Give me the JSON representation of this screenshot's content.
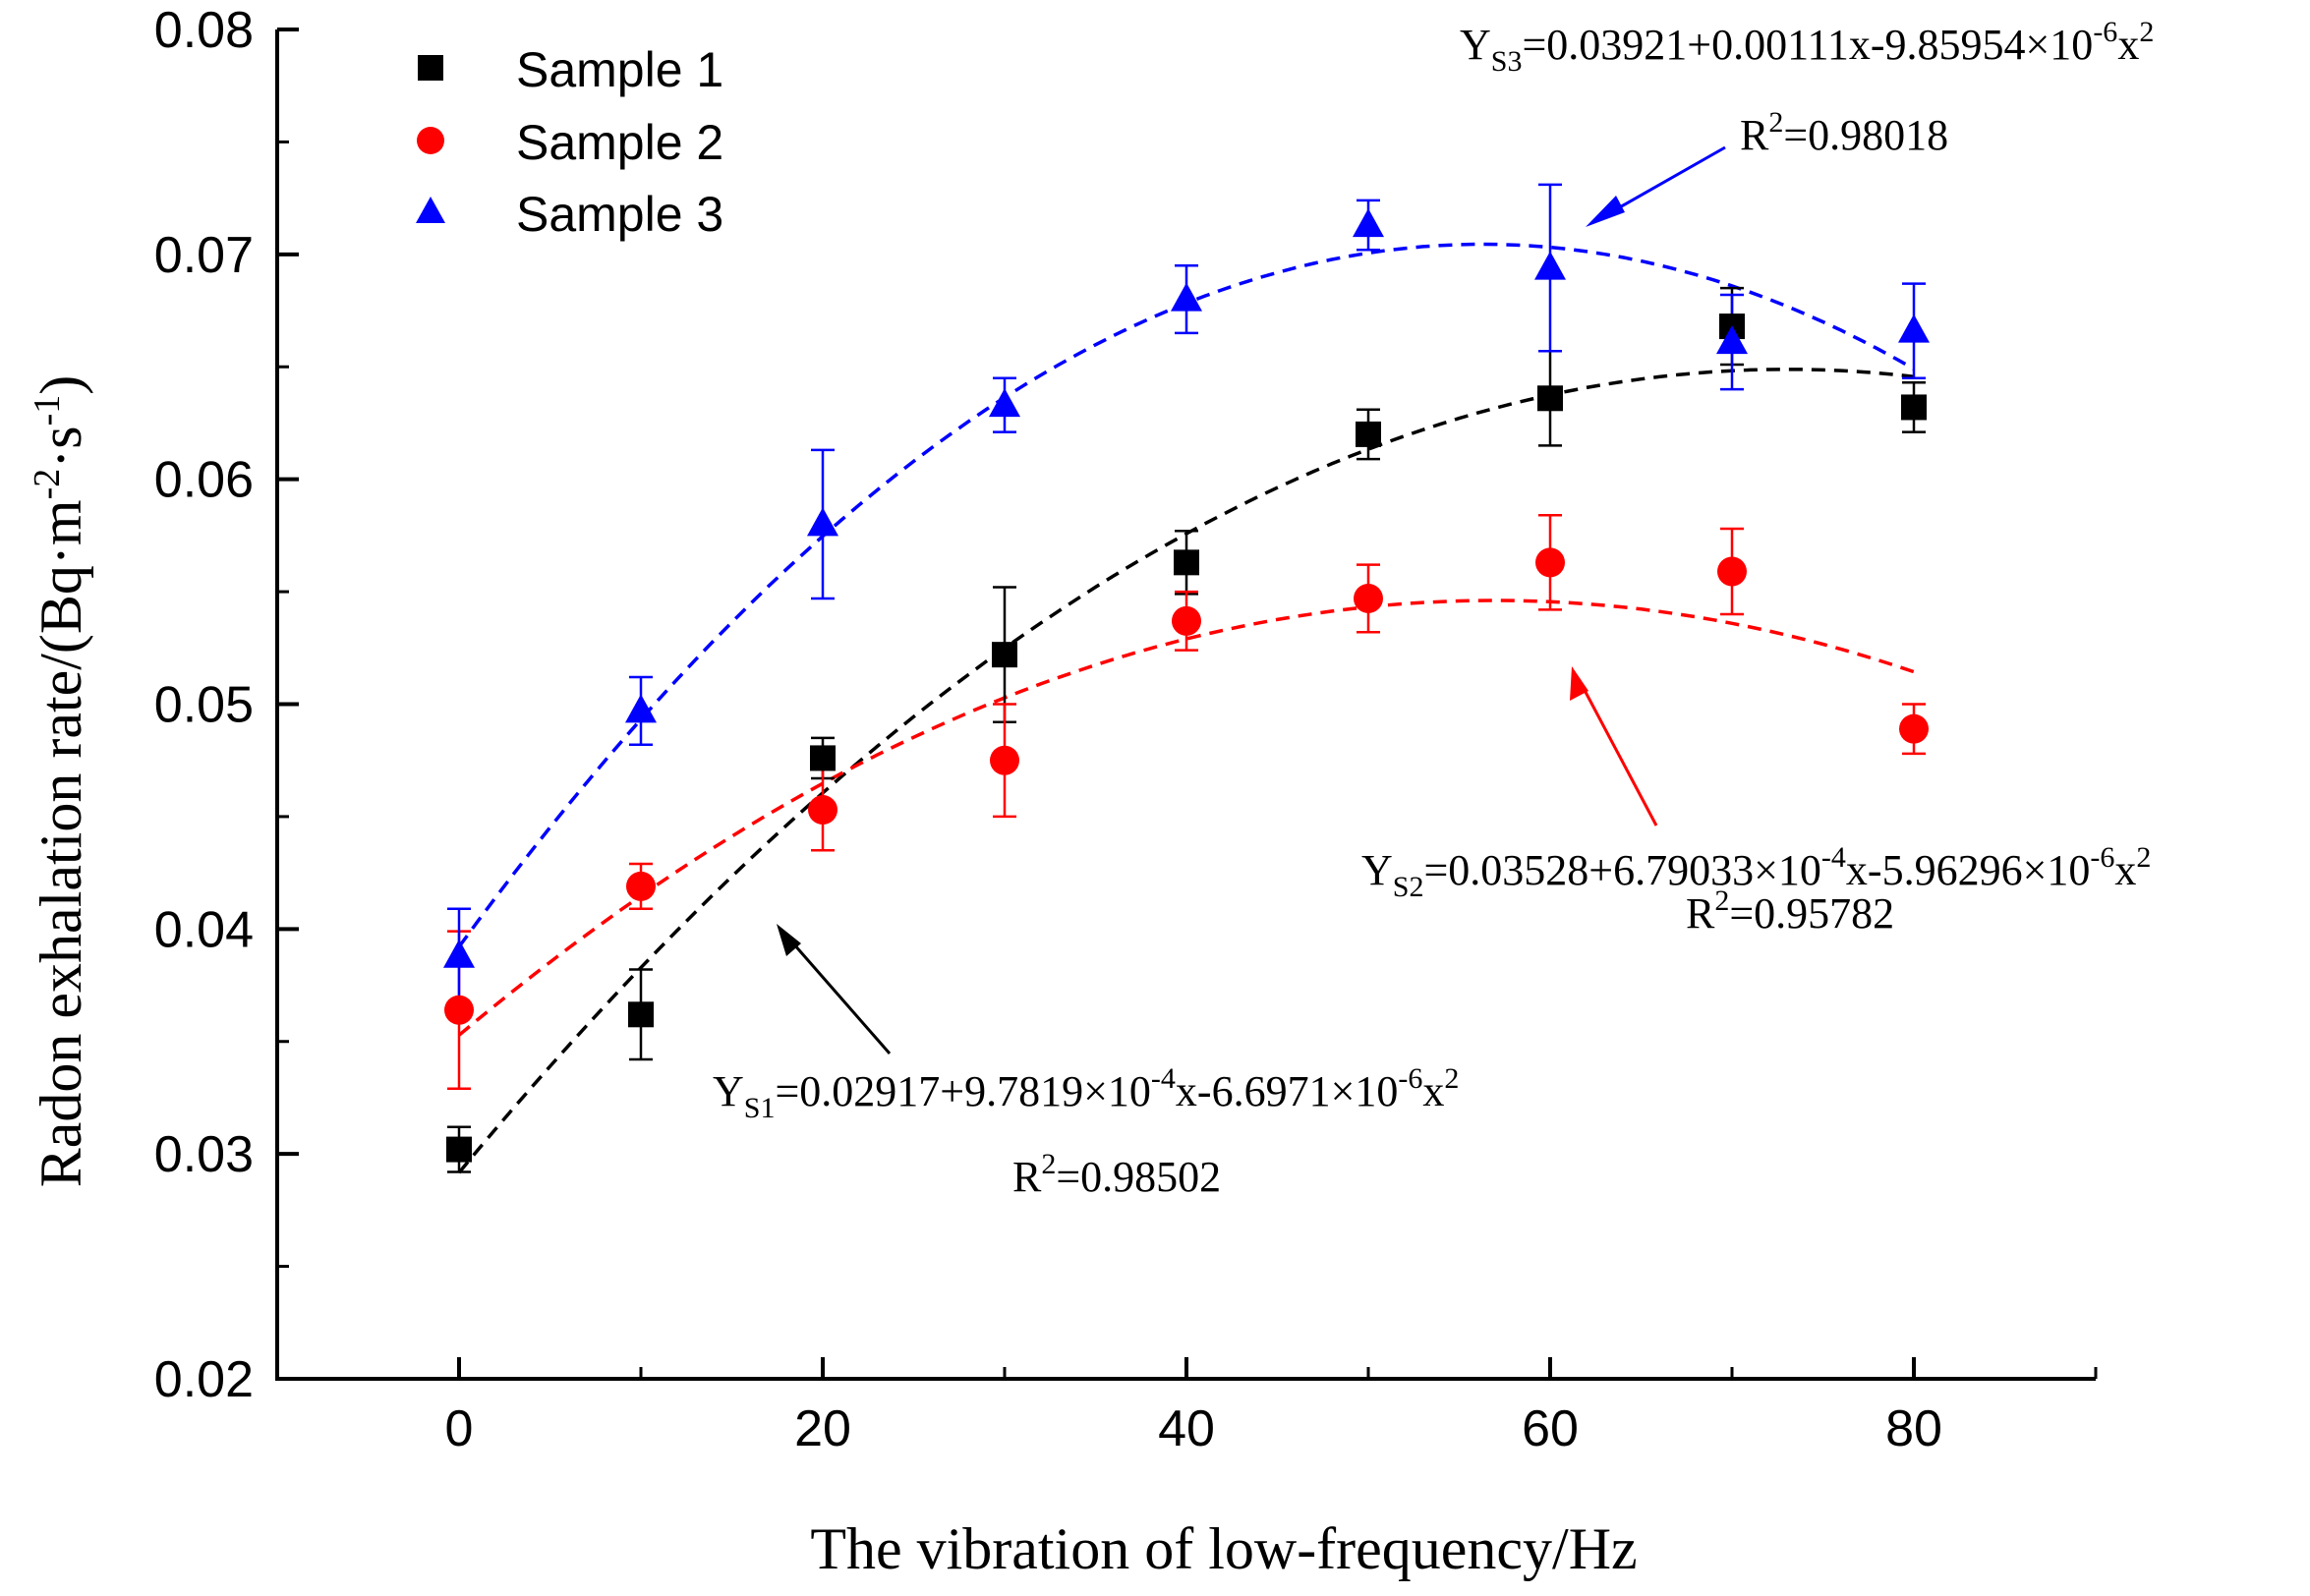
{
  "chart_data": {
    "type": "scatter",
    "title": "",
    "xlabel": "The vibration of low-frequency/Hz",
    "ylabel": {
      "main": "Radon exhalation rate/(Bq·m",
      "exp1": "-2",
      "mid": "·s",
      "exp2": "-1",
      "end": ")"
    },
    "xlim": [
      -10,
      90
    ],
    "ylim": [
      0.02,
      0.08
    ],
    "x_ticks": [
      0,
      20,
      40,
      60,
      80
    ],
    "x_tick_labels": [
      "0",
      "20",
      "40",
      "60",
      "80"
    ],
    "y_ticks": [
      0.02,
      0.03,
      0.04,
      0.05,
      0.06,
      0.07,
      0.08
    ],
    "y_tick_labels": [
      "0.02",
      "0.03",
      "0.04",
      "0.05",
      "0.06",
      "0.07",
      "0.08"
    ],
    "grid": false,
    "legend_position": "top-left",
    "x": [
      0,
      10,
      20,
      30,
      40,
      50,
      60,
      70,
      80
    ],
    "series": [
      {
        "name": "Sample 1",
        "color": "#000000",
        "marker": "square",
        "values": [
          0.0302,
          0.0362,
          0.0476,
          0.0522,
          0.0563,
          0.062,
          0.0636,
          0.0668,
          0.0632
        ],
        "errors": [
          0.001,
          0.002,
          0.0009,
          0.003,
          0.0014,
          0.0011,
          0.0021,
          0.0017,
          0.0011
        ],
        "fit": {
          "a": 0.02917,
          "b": 0.00097819,
          "c": -6.6971e-06
        },
        "equation": {
          "y": "Y",
          "sub": "S1",
          "body": "=0.02917+9.7819×10",
          "e1": "-4",
          "mid": "x-6.6971×10",
          "e2": "-6",
          "tail": "x",
          "e3": "2"
        },
        "r2": {
          "label": "R",
          "sup": "2",
          "value": "=0.98502"
        }
      },
      {
        "name": "Sample 2",
        "color": "#ff0000",
        "marker": "circle",
        "values": [
          0.0364,
          0.0419,
          0.0453,
          0.0475,
          0.0537,
          0.0547,
          0.0563,
          0.0559,
          0.0489
        ],
        "errors": [
          0.0035,
          0.001,
          0.0018,
          0.0025,
          0.0013,
          0.0015,
          0.0021,
          0.0019,
          0.0011
        ],
        "fit": {
          "a": 0.03528,
          "b": 0.000679033,
          "c": -5.96296e-06
        },
        "equation": {
          "y": "Y",
          "sub": "S2",
          "body": "=0.03528+6.79033×10",
          "e1": "-4",
          "mid": "x-5.96296×10",
          "e2": "-6",
          "tail": "x",
          "e3": "2"
        },
        "r2": {
          "label": "R",
          "sup": "2",
          "value": "=0.95782"
        }
      },
      {
        "name": "Sample 3",
        "color": "#0000ff",
        "marker": "triangle",
        "values": [
          0.0388,
          0.0497,
          0.058,
          0.0633,
          0.068,
          0.0713,
          0.0694,
          0.0661,
          0.0666
        ],
        "errors": [
          0.0021,
          0.0015,
          0.0033,
          0.0012,
          0.0015,
          0.0011,
          0.0037,
          0.0021,
          0.0021
        ],
        "fit": {
          "a": 0.03921,
          "b": 0.00111,
          "c": -9.85954e-06
        },
        "equation": {
          "y": "Y",
          "sub": "S3",
          "body": "=0.03921+0.00111x-9.85954×10",
          "e1": "-6",
          "mid": "",
          "e2": "",
          "tail": "x",
          "e3": "2"
        },
        "r2": {
          "label": "R",
          "sup": "2",
          "value": "=0.98018"
        }
      }
    ]
  }
}
